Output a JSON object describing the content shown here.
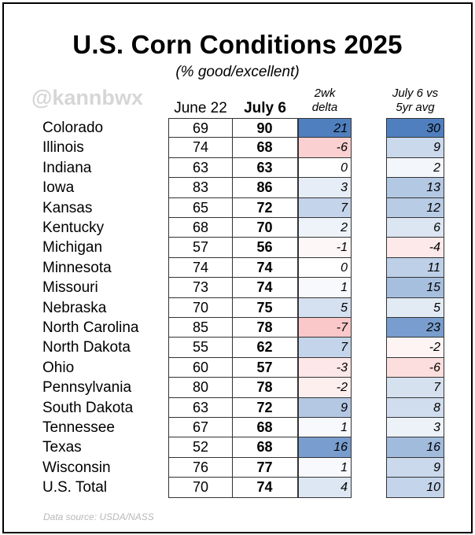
{
  "title": "U.S. Corn Conditions 2025",
  "subtitle": "(% good/excellent)",
  "watermark": "@kannbwx",
  "source": "Data source: USDA/NASS",
  "headers": {
    "june": "June 22",
    "july": "July 6",
    "delta_line1": "2wk",
    "delta_line2": "delta",
    "avg_line1": "July 6 vs",
    "avg_line2": "5yr avg"
  },
  "colors": {
    "positive_max": "#4f7fbf",
    "negative_max": "#f0595c",
    "neutral": "#ffffff"
  },
  "scale": {
    "delta_max": 21,
    "avg_max": 30
  },
  "chart_data": {
    "type": "table",
    "title": "U.S. Corn Conditions 2025",
    "subtitle": "(% good/excellent)",
    "columns": [
      "June 22",
      "July 6",
      "2wk delta",
      "July 6 vs 5yr avg"
    ],
    "rows": [
      {
        "state": "Colorado",
        "june22": "69",
        "july6": "90",
        "delta": "21",
        "vs5yr": "30"
      },
      {
        "state": "Illinois",
        "june22": "74",
        "july6": "68",
        "delta": "-6",
        "vs5yr": "9"
      },
      {
        "state": "Indiana",
        "june22": "63",
        "july6": "63",
        "delta": "0",
        "vs5yr": "2"
      },
      {
        "state": "Iowa",
        "june22": "83",
        "july6": "86",
        "delta": "3",
        "vs5yr": "13"
      },
      {
        "state": "Kansas",
        "june22": "65",
        "july6": "72",
        "delta": "7",
        "vs5yr": "12"
      },
      {
        "state": "Kentucky",
        "june22": "68",
        "july6": "70",
        "delta": "2",
        "vs5yr": "6"
      },
      {
        "state": "Michigan",
        "june22": "57",
        "july6": "56",
        "delta": "-1",
        "vs5yr": "-4"
      },
      {
        "state": "Minnesota",
        "june22": "74",
        "july6": "74",
        "delta": "0",
        "vs5yr": "11"
      },
      {
        "state": "Missouri",
        "june22": "73",
        "july6": "74",
        "delta": "1",
        "vs5yr": "15"
      },
      {
        "state": "Nebraska",
        "june22": "70",
        "july6": "75",
        "delta": "5",
        "vs5yr": "5"
      },
      {
        "state": "North Carolina",
        "june22": "85",
        "july6": "78",
        "delta": "-7",
        "vs5yr": "23"
      },
      {
        "state": "North Dakota",
        "june22": "55",
        "july6": "62",
        "delta": "7",
        "vs5yr": "-2"
      },
      {
        "state": "Ohio",
        "june22": "60",
        "july6": "57",
        "delta": "-3",
        "vs5yr": "-6"
      },
      {
        "state": "Pennsylvania",
        "june22": "80",
        "july6": "78",
        "delta": "-2",
        "vs5yr": "7"
      },
      {
        "state": "South Dakota",
        "june22": "63",
        "july6": "72",
        "delta": "9",
        "vs5yr": "8"
      },
      {
        "state": "Tennessee",
        "june22": "67",
        "july6": "68",
        "delta": "1",
        "vs5yr": "3"
      },
      {
        "state": "Texas",
        "june22": "52",
        "july6": "68",
        "delta": "16",
        "vs5yr": "16"
      },
      {
        "state": "Wisconsin",
        "june22": "76",
        "july6": "77",
        "delta": "1",
        "vs5yr": "9"
      },
      {
        "state": "U.S. Total",
        "june22": "70",
        "july6": "74",
        "delta": "4",
        "vs5yr": "10"
      }
    ]
  }
}
